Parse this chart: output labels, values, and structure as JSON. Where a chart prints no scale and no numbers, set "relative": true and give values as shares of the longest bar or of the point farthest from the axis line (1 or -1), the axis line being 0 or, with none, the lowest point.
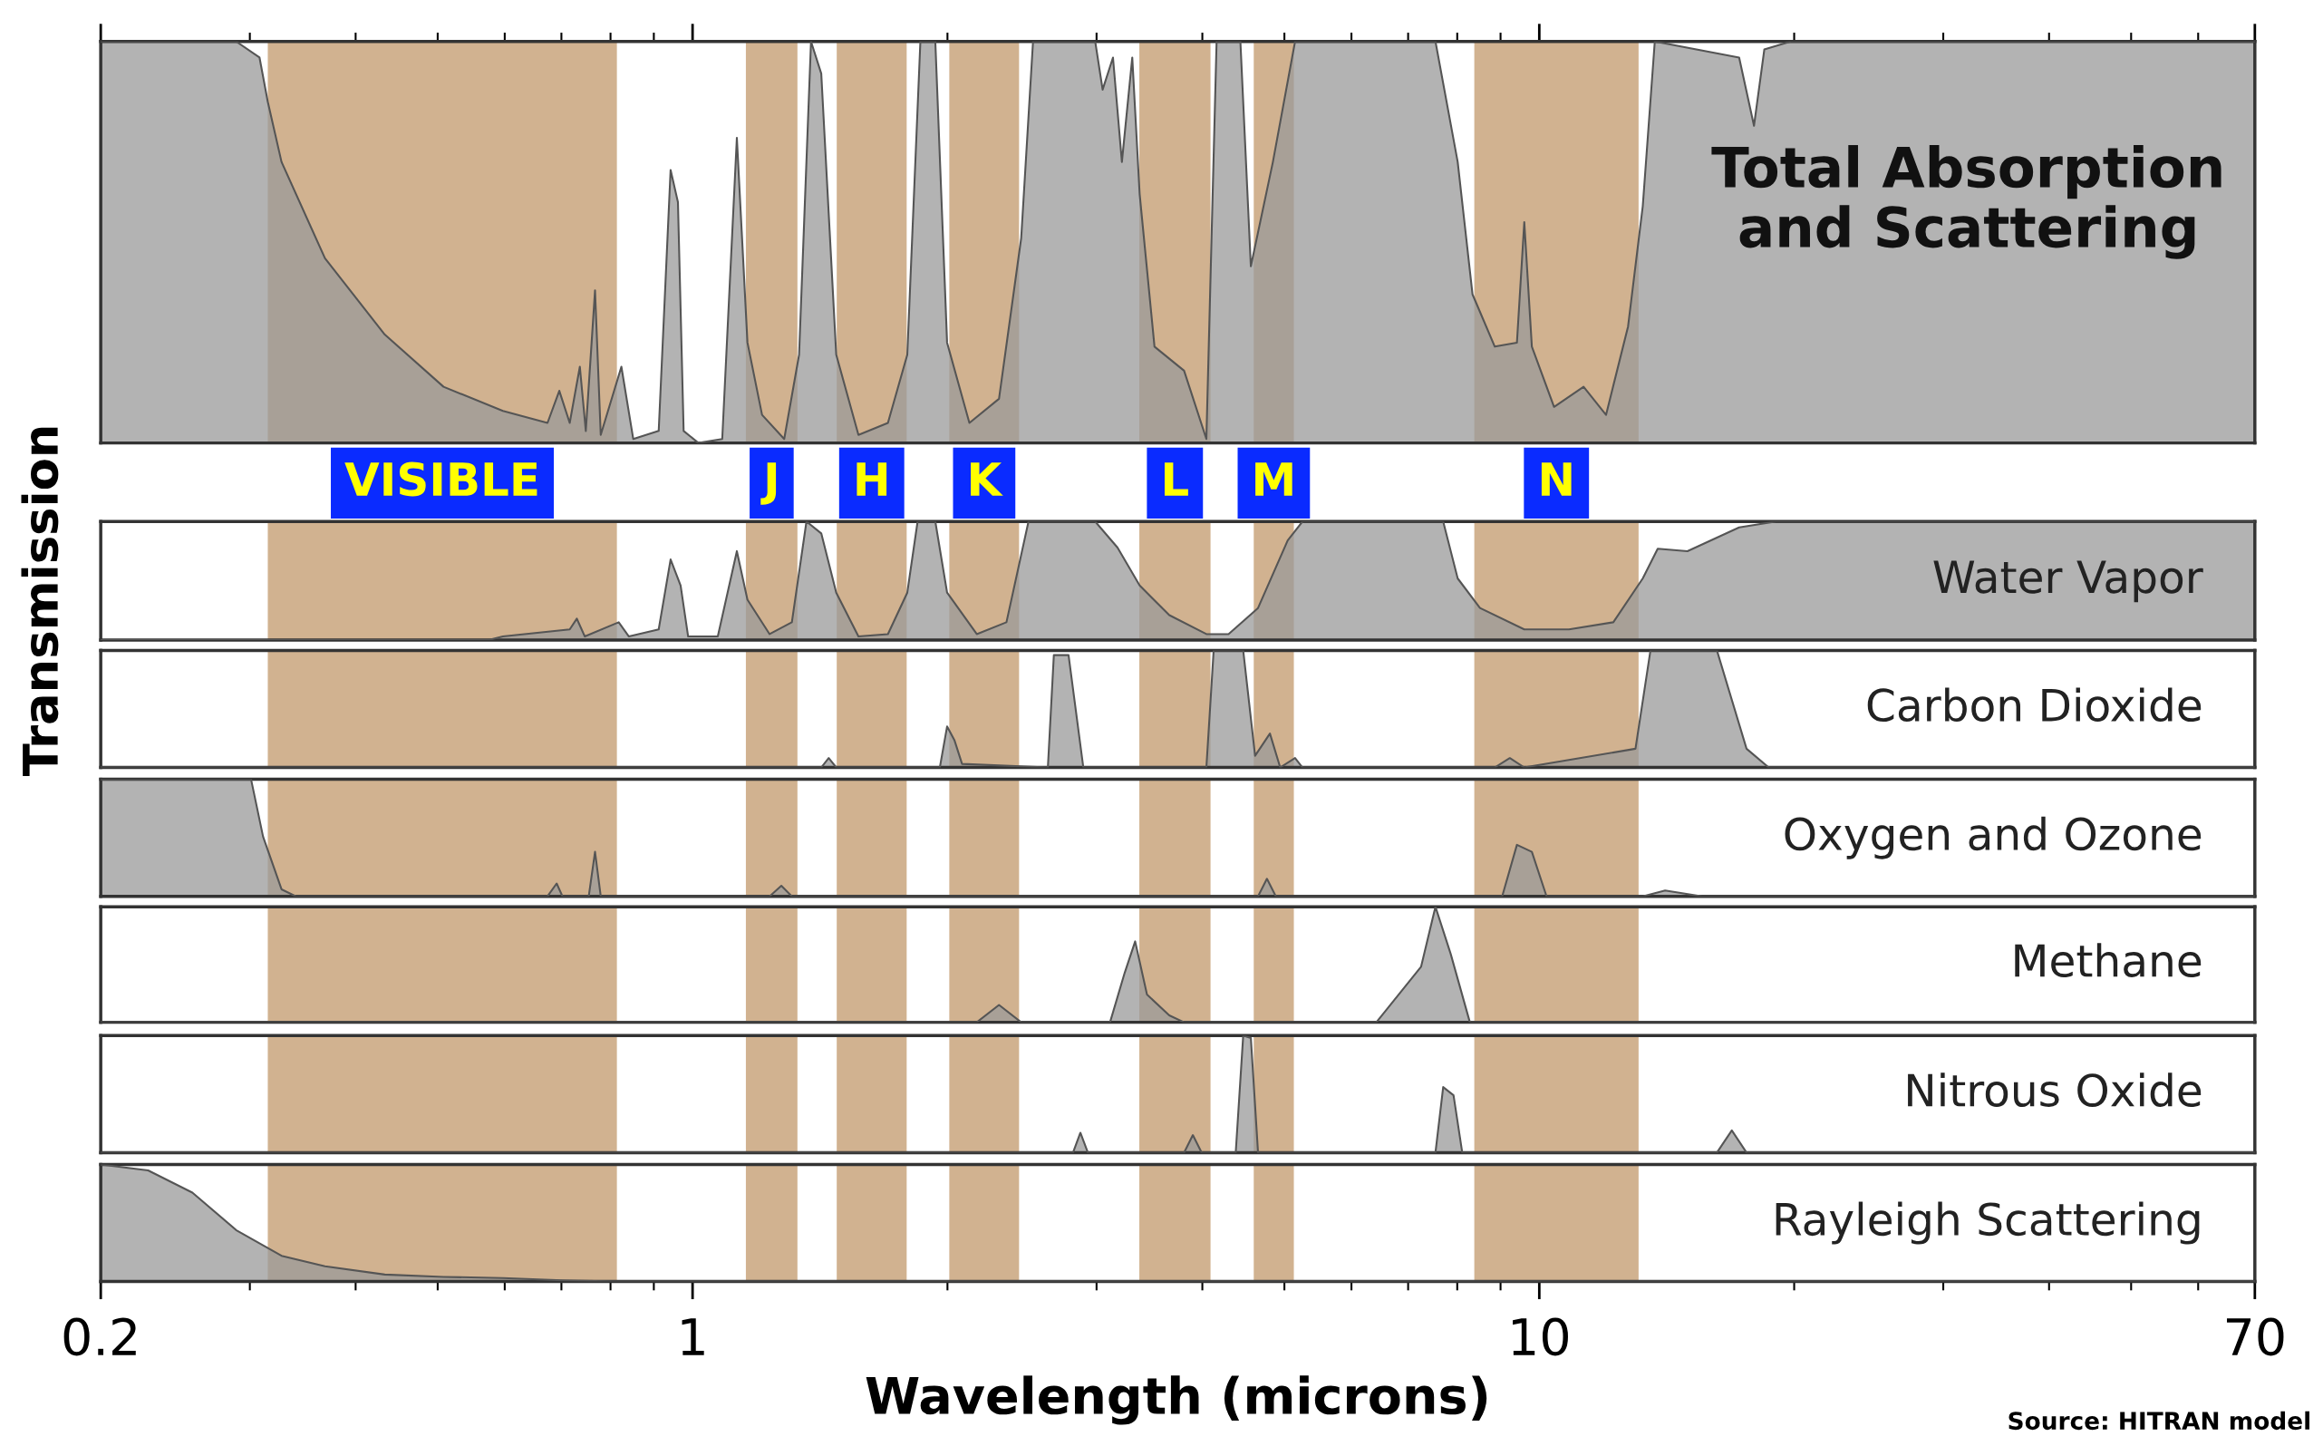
{
  "chart_data": [
    {
      "type": "area",
      "title": "Total Absorption\nand Scattering",
      "ylabel": "Transmission",
      "relative": true,
      "log": "x",
      "xlim": [
        0.2,
        70
      ],
      "xticks": [
        0.2,
        1,
        10,
        70
      ],
      "tick_labels": false,
      "series": [
        {
          "color": "#999999",
          "x": [
            0.2,
            0.289,
            0.308,
            0.315,
            0.327,
            0.368,
            0.433,
            0.508,
            0.597,
            0.674,
            0.696,
            0.716,
            0.736,
            0.748,
            0.767,
            0.779,
            0.824,
            0.851,
            0.912,
            0.942,
            0.961,
            0.976,
            1.016,
            1.084,
            1.128,
            1.161,
            1.208,
            1.283,
            1.336,
            1.38,
            1.419,
            1.478,
            1.57,
            1.701,
            1.793,
            1.858,
            1.935,
            1.998,
            2.123,
            2.301,
            2.444,
            2.524,
            2.989,
            3.05,
            3.137,
            3.214,
            3.306,
            3.373,
            3.512,
            3.806,
            4.044,
            4.158,
            4.436,
            4.564,
            4.846,
            5.147,
            7.54,
            8.01,
            8.34,
            8.86,
            9.41,
            9.6,
            9.8,
            10.41,
            11.28,
            11.99,
            12.73,
            13.25,
            13.69,
            17.22,
            17.93,
            18.44,
            19.82,
            70
          ],
          "values": [
            1,
            1,
            0.96,
            0.85,
            0.7,
            0.46,
            0.27,
            0.14,
            0.08,
            0.05,
            0.13,
            0.05,
            0.19,
            0.03,
            0.38,
            0.02,
            0.19,
            0.01,
            0.03,
            0.68,
            0.6,
            0.03,
            0,
            0.01,
            0.76,
            0.25,
            0.07,
            0.01,
            0.22,
            1,
            0.92,
            0.22,
            0.02,
            0.05,
            0.22,
            1,
            1,
            0.25,
            0.05,
            0.11,
            0.51,
            1,
            1,
            0.88,
            0.96,
            0.7,
            0.96,
            0.62,
            0.24,
            0.18,
            0.01,
            1,
            1,
            0.44,
            0.7,
            1,
            1,
            0.7,
            0.37,
            0.24,
            0.25,
            0.55,
            0.24,
            0.09,
            0.14,
            0.07,
            0.29,
            0.59,
            1,
            0.96,
            0.79,
            0.98,
            1,
            1
          ]
        }
      ],
      "bands": [
        {
          "axis": "x",
          "from": 0.315,
          "to": 0.814,
          "label": "VISIBLE",
          "color": "#c9a57c"
        },
        {
          "axis": "x",
          "from": 1.156,
          "to": 1.33,
          "label": "J",
          "color": "#c9a57c"
        },
        {
          "axis": "x",
          "from": 1.48,
          "to": 1.79,
          "label": "H",
          "color": "#c9a57c"
        },
        {
          "axis": "x",
          "from": 2.01,
          "to": 2.43,
          "label": "K",
          "color": "#c9a57c"
        },
        {
          "axis": "x",
          "from": 3.37,
          "to": 4.09,
          "label": "L",
          "color": "#c9a57c"
        },
        {
          "axis": "x",
          "from": 4.6,
          "to": 5.13,
          "label": "M",
          "color": "#c9a57c"
        },
        {
          "axis": "x",
          "from": 8.38,
          "to": 13.1,
          "label": "N",
          "color": "#c9a57c"
        }
      ]
    },
    {
      "type": "area",
      "title": "Water Vapor",
      "relative": true,
      "log": "x",
      "xlim": [
        0.2,
        70
      ],
      "xticks": [
        0.2,
        1,
        10,
        70
      ],
      "tick_labels": false,
      "series": [
        {
          "color": "#999999",
          "x": [
            0.2,
            0.574,
            0.597,
            0.716,
            0.73,
            0.746,
            0.818,
            0.841,
            0.912,
            0.942,
            0.968,
            0.988,
            1.071,
            1.128,
            1.161,
            1.233,
            1.31,
            1.363,
            1.419,
            1.478,
            1.57,
            1.701,
            1.793,
            1.844,
            1.935,
            1.998,
            2.166,
            2.348,
            2.493,
            2.989,
            3.176,
            3.373,
            3.656,
            4.044,
            4.295,
            4.654,
            5.045,
            5.252,
            7.7,
            8.01,
            8.51,
            9.6,
            10.84,
            12.23,
            13.25,
            13.8,
            14.96,
            17.22,
            19.04,
            70
          ],
          "values": [
            0,
            0,
            0.03,
            0.09,
            0.18,
            0.03,
            0.15,
            0.03,
            0.09,
            0.68,
            0.46,
            0.03,
            0.03,
            0.75,
            0.34,
            0.05,
            0.15,
            1,
            0.9,
            0.4,
            0.03,
            0.05,
            0.4,
            1,
            1,
            0.4,
            0.05,
            0.15,
            1,
            1,
            0.78,
            0.46,
            0.21,
            0.05,
            0.05,
            0.27,
            0.84,
            1,
            1,
            0.52,
            0.27,
            0.09,
            0.09,
            0.15,
            0.52,
            0.77,
            0.75,
            0.95,
            1,
            1
          ]
        }
      ],
      "bands": [
        {
          "axis": "x",
          "from": 0.315,
          "to": 0.814,
          "color": "#c9a57c"
        },
        {
          "axis": "x",
          "from": 1.156,
          "to": 1.33,
          "color": "#c9a57c"
        },
        {
          "axis": "x",
          "from": 1.48,
          "to": 1.79,
          "color": "#c9a57c"
        },
        {
          "axis": "x",
          "from": 2.01,
          "to": 2.43,
          "color": "#c9a57c"
        },
        {
          "axis": "x",
          "from": 3.37,
          "to": 4.09,
          "color": "#c9a57c"
        },
        {
          "axis": "x",
          "from": 4.6,
          "to": 5.13,
          "color": "#c9a57c"
        },
        {
          "axis": "x",
          "from": 8.38,
          "to": 13.1,
          "color": "#c9a57c"
        }
      ]
    },
    {
      "type": "area",
      "title": "Carbon Dioxide",
      "relative": true,
      "log": "x",
      "xlim": [
        0.2,
        70
      ],
      "xticks": [
        0.2,
        1,
        10,
        70
      ],
      "tick_labels": false,
      "series": [
        {
          "color": "#999999",
          "x": [
            0.2,
            1.419,
            1.448,
            1.478,
            1.959,
            1.998,
            2.039,
            2.081,
            2.628,
            2.671,
            2.78,
            2.894,
            4.044,
            4.125,
            4.47,
            4.617,
            4.807,
            4.943,
            5.147,
            5.252,
            8.86,
            9.23,
            9.6,
            12.99,
            13.53,
            16.21,
            17.57,
            18.66,
            70
          ],
          "values": [
            0,
            0,
            0.08,
            0,
            0,
            0.35,
            0.23,
            0.03,
            0,
            0.96,
            0.96,
            0,
            0,
            1,
            1,
            0.1,
            0.29,
            0,
            0.08,
            0,
            0,
            0.08,
            0,
            0.16,
            1,
            1,
            0.16,
            0,
            0
          ]
        }
      ],
      "bands": [
        {
          "axis": "x",
          "from": 0.315,
          "to": 0.814,
          "color": "#c9a57c"
        },
        {
          "axis": "x",
          "from": 1.156,
          "to": 1.33,
          "color": "#c9a57c"
        },
        {
          "axis": "x",
          "from": 1.48,
          "to": 1.79,
          "color": "#c9a57c"
        },
        {
          "axis": "x",
          "from": 2.01,
          "to": 2.43,
          "color": "#c9a57c"
        },
        {
          "axis": "x",
          "from": 3.37,
          "to": 4.09,
          "color": "#c9a57c"
        },
        {
          "axis": "x",
          "from": 4.6,
          "to": 5.13,
          "color": "#c9a57c"
        },
        {
          "axis": "x",
          "from": 8.38,
          "to": 13.1,
          "color": "#c9a57c"
        }
      ]
    },
    {
      "type": "area",
      "title": "Oxygen and Ozone",
      "relative": true,
      "log": "x",
      "xlim": [
        0.2,
        70
      ],
      "xticks": [
        0.2,
        1,
        10,
        70
      ],
      "tick_labels": false,
      "series": [
        {
          "color": "#999999",
          "x": [
            0.2,
            0.301,
            0.311,
            0.327,
            0.34,
            0.674,
            0.691,
            0.702,
            0.754,
            0.767,
            0.779,
            1.233,
            1.273,
            1.31,
            4.654,
            4.768,
            4.885,
            9.04,
            9.41,
            9.8,
            10.2,
            13.25,
            14.08,
            15.57,
            70
          ],
          "values": [
            1,
            1,
            0.51,
            0.06,
            0,
            0,
            0.11,
            0,
            0,
            0.38,
            0,
            0,
            0.09,
            0,
            0,
            0.15,
            0,
            0,
            0.44,
            0.38,
            0,
            0,
            0.05,
            0,
            0
          ]
        }
      ],
      "bands": [
        {
          "axis": "x",
          "from": 0.315,
          "to": 0.814,
          "color": "#c9a57c"
        },
        {
          "axis": "x",
          "from": 1.156,
          "to": 1.33,
          "color": "#c9a57c"
        },
        {
          "axis": "x",
          "from": 1.48,
          "to": 1.79,
          "color": "#c9a57c"
        },
        {
          "axis": "x",
          "from": 2.01,
          "to": 2.43,
          "color": "#c9a57c"
        },
        {
          "axis": "x",
          "from": 3.37,
          "to": 4.09,
          "color": "#c9a57c"
        },
        {
          "axis": "x",
          "from": 4.6,
          "to": 5.13,
          "color": "#c9a57c"
        },
        {
          "axis": "x",
          "from": 8.38,
          "to": 13.1,
          "color": "#c9a57c"
        }
      ]
    },
    {
      "type": "area",
      "title": "Methane",
      "relative": true,
      "log": "x",
      "xlim": [
        0.2,
        70
      ],
      "xticks": [
        0.2,
        1,
        10,
        70
      ],
      "tick_labels": false,
      "series": [
        {
          "color": "#999999",
          "x": [
            0.2,
            2.166,
            2.301,
            2.444,
            3.112,
            3.239,
            3.332,
            3.441,
            3.656,
            3.806,
            6.42,
            7.25,
            7.54,
            7.86,
            8.28,
            70
          ],
          "values": [
            0,
            0,
            0.15,
            0,
            0,
            0.43,
            0.7,
            0.24,
            0.06,
            0,
            0,
            0.48,
            1,
            0.59,
            0,
            0
          ]
        }
      ],
      "bands": [
        {
          "axis": "x",
          "from": 0.315,
          "to": 0.814,
          "color": "#c9a57c"
        },
        {
          "axis": "x",
          "from": 1.156,
          "to": 1.33,
          "color": "#c9a57c"
        },
        {
          "axis": "x",
          "from": 1.48,
          "to": 1.79,
          "color": "#c9a57c"
        },
        {
          "axis": "x",
          "from": 2.01,
          "to": 2.43,
          "color": "#c9a57c"
        },
        {
          "axis": "x",
          "from": 3.37,
          "to": 4.09,
          "color": "#c9a57c"
        },
        {
          "axis": "x",
          "from": 4.6,
          "to": 5.13,
          "color": "#c9a57c"
        },
        {
          "axis": "x",
          "from": 8.38,
          "to": 13.1,
          "color": "#c9a57c"
        }
      ]
    },
    {
      "type": "area",
      "title": "Nitrous Oxide",
      "relative": true,
      "log": "x",
      "xlim": [
        0.2,
        70
      ],
      "xticks": [
        0.2,
        1,
        10,
        70
      ],
      "tick_labels": false,
      "series": [
        {
          "color": "#999999",
          "x": [
            0.2,
            2.814,
            2.871,
            2.93,
            3.806,
            3.898,
            3.993,
            4.38,
            4.47,
            4.564,
            4.654,
            7.54,
            7.7,
            7.92,
            8.11,
            16.21,
            16.88,
            17.57,
            70
          ],
          "values": [
            0,
            0,
            0.17,
            0,
            0,
            0.15,
            0,
            0,
            1,
            0.98,
            0,
            0,
            0.56,
            0.49,
            0,
            0,
            0.19,
            0,
            0
          ]
        }
      ],
      "bands": [
        {
          "axis": "x",
          "from": 0.315,
          "to": 0.814,
          "color": "#c9a57c"
        },
        {
          "axis": "x",
          "from": 1.156,
          "to": 1.33,
          "color": "#c9a57c"
        },
        {
          "axis": "x",
          "from": 1.48,
          "to": 1.79,
          "color": "#c9a57c"
        },
        {
          "axis": "x",
          "from": 2.01,
          "to": 2.43,
          "color": "#c9a57c"
        },
        {
          "axis": "x",
          "from": 3.37,
          "to": 4.09,
          "color": "#c9a57c"
        },
        {
          "axis": "x",
          "from": 4.6,
          "to": 5.13,
          "color": "#c9a57c"
        },
        {
          "axis": "x",
          "from": 8.38,
          "to": 13.1,
          "color": "#c9a57c"
        }
      ]
    },
    {
      "type": "area",
      "title": "Rayleigh Scattering",
      "xlabel": "Wavelength (microns)",
      "annotations": [
        "Source: HITRAN model"
      ],
      "relative": true,
      "log": "x",
      "xlim": [
        0.2,
        70
      ],
      "xticks": [
        0.2,
        1,
        10,
        70
      ],
      "tick_labels": "x",
      "series": [
        {
          "color": "#999999",
          "x": [
            0.2,
            0.2275,
            0.2566,
            0.289,
            0.327,
            0.368,
            0.433,
            0.508,
            0.597,
            0.702,
            0.814,
            70
          ],
          "values": [
            1,
            0.95,
            0.76,
            0.44,
            0.22,
            0.13,
            0.06,
            0.04,
            0.03,
            0.01,
            0,
            0
          ]
        }
      ],
      "bands": [
        {
          "axis": "x",
          "from": 0.315,
          "to": 0.814,
          "color": "#c9a57c"
        },
        {
          "axis": "x",
          "from": 1.156,
          "to": 1.33,
          "color": "#c9a57c"
        },
        {
          "axis": "x",
          "from": 1.48,
          "to": 1.79,
          "color": "#c9a57c"
        },
        {
          "axis": "x",
          "from": 2.01,
          "to": 2.43,
          "color": "#c9a57c"
        },
        {
          "axis": "x",
          "from": 3.37,
          "to": 4.09,
          "color": "#c9a57c"
        },
        {
          "axis": "x",
          "from": 4.6,
          "to": 5.13,
          "color": "#c9a57c"
        },
        {
          "axis": "x",
          "from": 8.38,
          "to": 13.1,
          "color": "#c9a57c"
        }
      ]
    }
  ]
}
